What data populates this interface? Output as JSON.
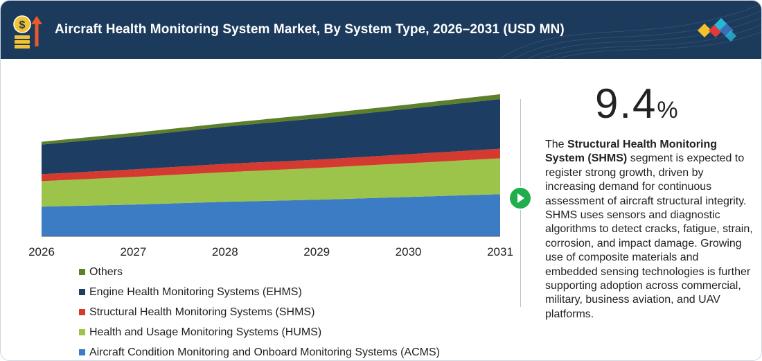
{
  "header": {
    "title": "Aircraft Health Monitoring System Market, By System Type, 2026–2031 (USD MN)",
    "icon": "money-growth-icon",
    "logo": "brand-diamonds-logo"
  },
  "kpi": {
    "value": "9.4",
    "unit": "%"
  },
  "description": {
    "lead": "The ",
    "highlight": "Structural Health Monitoring System (SHMS)",
    "text": " segment is expected to register strong growth, driven by increasing demand for continuous assessment of aircraft structural integrity. SHMS uses sensors and diagnostic algorithms to detect cracks, fatigue, strain, corrosion, and impact damage. Growing use of composite materials and embedded sensing technologies is further supporting adoption across commercial, military, business aviation, and UAV platforms."
  },
  "colors": {
    "header": "#1b3a5c",
    "arrow": "#1fae4b",
    "logo": [
      "#f3c12a",
      "#e23a3a",
      "#27b8d6",
      "#3a6fb5"
    ]
  },
  "chart_data": {
    "type": "area",
    "stacked": true,
    "x": [
      "2026",
      "2027",
      "2028",
      "2029",
      "2030",
      "2031"
    ],
    "series": [
      {
        "name": "Aircraft Condition Monitoring and Onboard Monitoring Systems (ACMS)",
        "color": "#3b7cc4",
        "values": [
          43,
          46,
          50,
          53,
          57,
          61
        ]
      },
      {
        "name": "Health and Usage Monitoring Systems (HUMS)",
        "color": "#9cc44a",
        "values": [
          37,
          40,
          43,
          46,
          49,
          52
        ]
      },
      {
        "name": "Structural Health Monitoring Systems (SHMS)",
        "color": "#d43a2f",
        "values": [
          10,
          11,
          12,
          12,
          13,
          14
        ]
      },
      {
        "name": "Engine Health Monitoring Systems (EHMS)",
        "color": "#1d3d62",
        "values": [
          43,
          48,
          54,
          60,
          66,
          72
        ]
      },
      {
        "name": "Others",
        "color": "#5c7f2a",
        "values": [
          4,
          5,
          5,
          6,
          6,
          7
        ]
      }
    ],
    "ylim": [
      0,
      210
    ],
    "grid": false,
    "legend": "bottom",
    "xlabel": "",
    "ylabel": ""
  }
}
